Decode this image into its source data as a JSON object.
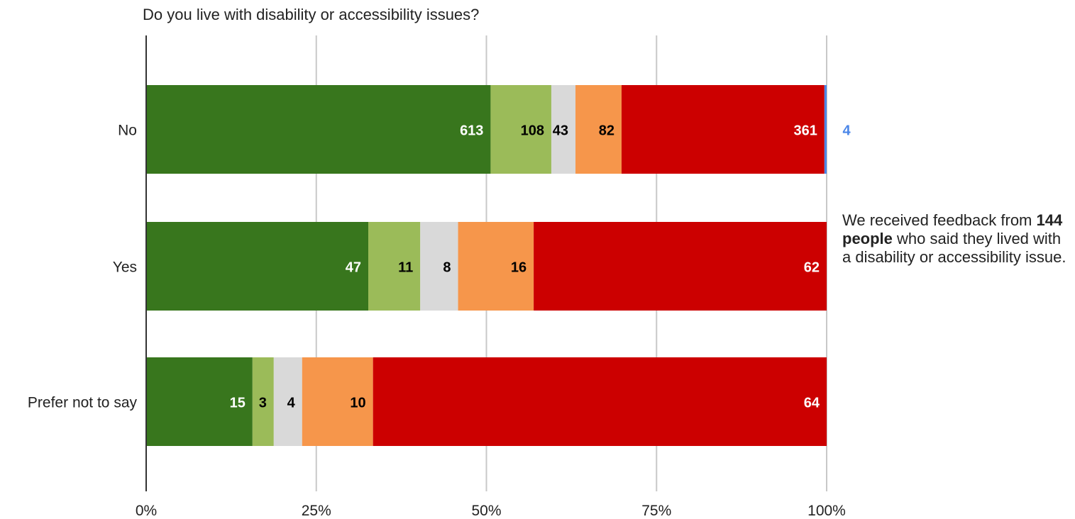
{
  "chart_data": {
    "type": "bar",
    "orientation": "horizontal",
    "stacked": "percent",
    "title": "Do you live with disability or accessibility issues?",
    "categories": [
      "No",
      "Yes",
      "Prefer not to say"
    ],
    "series": [
      {
        "color": "#38761d",
        "values": [
          613,
          47,
          15
        ],
        "label_color": "#ffffff"
      },
      {
        "color": "#9bbb59",
        "values": [
          108,
          11,
          3
        ],
        "label_color": "#000000"
      },
      {
        "color": "#d9d9d9",
        "values": [
          43,
          8,
          4
        ],
        "label_color": "#000000"
      },
      {
        "color": "#f6964b",
        "values": [
          82,
          16,
          10
        ],
        "label_color": "#000000"
      },
      {
        "color": "#cc0000",
        "values": [
          361,
          62,
          64
        ],
        "label_color": "#ffffff"
      },
      {
        "color": "#4a86e8",
        "values": [
          4,
          0,
          0
        ],
        "label_color": "#4a86e8"
      }
    ],
    "x_ticks": [
      "0%",
      "25%",
      "50%",
      "75%",
      "100%"
    ],
    "xlim": [
      0,
      100
    ],
    "grid": true,
    "legend": "none"
  },
  "annotation": {
    "prefix": "We received feedback from",
    "emphasis": "144 people",
    "suffix": "who said they lived with a disability or accessibility issue."
  }
}
